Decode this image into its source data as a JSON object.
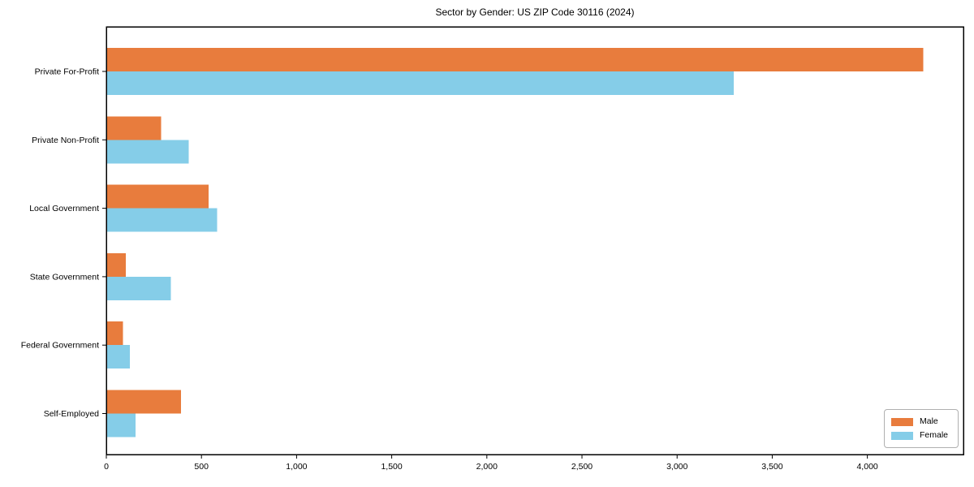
{
  "title": "Sector by Gender: US ZIP Code 30116 (2024)",
  "chart_data": {
    "type": "bar",
    "orientation": "horizontal",
    "title": "Sector by Gender: US ZIP Code 30116 (2024)",
    "categories": [
      "Private For-Profit",
      "Private Non-Profit",
      "Local Government",
      "State Government",
      "Federal Government",
      "Self-Employed"
    ],
    "series": [
      {
        "name": "Male",
        "color": "#e87c3d",
        "values": [
          4290,
          285,
          535,
          100,
          85,
          390
        ]
      },
      {
        "name": "Female",
        "color": "#85cde8",
        "values": [
          3295,
          430,
          580,
          335,
          120,
          150
        ]
      }
    ],
    "xlabel": "",
    "ylabel": "",
    "xlim": [
      0,
      4505
    ],
    "xticks": [
      0,
      500,
      1000,
      1500,
      2000,
      2500,
      3000,
      3500,
      4000
    ],
    "xtick_labels": [
      "0",
      "500",
      "1,000",
      "1,500",
      "2,000",
      "2,500",
      "3,000",
      "3,500",
      "4,000"
    ],
    "grid": false,
    "legend_position": "lower right",
    "axis_color": "#000000",
    "background_color": "#ffffff"
  },
  "legend": {
    "items": [
      {
        "label": "Male",
        "color": "#e87c3d"
      },
      {
        "label": "Female",
        "color": "#85cde8"
      }
    ]
  }
}
